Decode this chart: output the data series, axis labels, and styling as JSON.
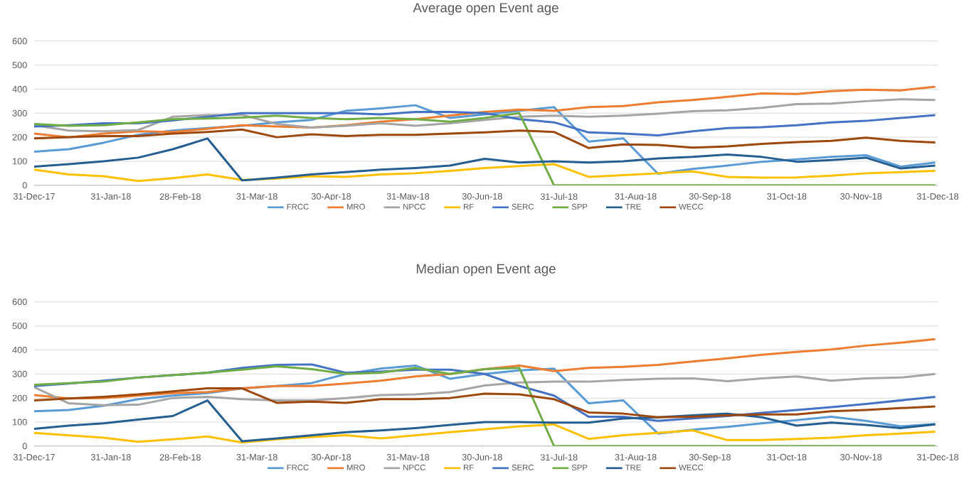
{
  "chart_data": [
    {
      "type": "line",
      "title": "Average open Event age",
      "x": [
        "2017-12-31",
        "2018-01-14",
        "2018-01-28",
        "2018-02-11",
        "2018-02-25",
        "2018-03-11",
        "2018-03-25",
        "2018-04-08",
        "2018-04-22",
        "2018-05-06",
        "2018-05-20",
        "2018-06-03",
        "2018-06-17",
        "2018-07-01",
        "2018-07-15",
        "2018-07-29",
        "2018-08-12",
        "2018-08-26",
        "2018-09-09",
        "2018-09-23",
        "2018-10-07",
        "2018-10-21",
        "2018-11-04",
        "2018-11-18",
        "2018-12-02",
        "2018-12-16",
        "2018-12-30"
      ],
      "series": [
        {
          "name": "FRCC",
          "color": "#5b9bd5",
          "values": [
            140,
            150,
            177,
            210,
            228,
            238,
            248,
            262,
            272,
            310,
            320,
            333,
            280,
            295,
            310,
            325,
            182,
            195,
            48,
            68,
            82,
            98,
            108,
            118,
            125,
            78,
            95
          ]
        },
        {
          "name": "MRO",
          "color": "#ed7d31",
          "values": [
            215,
            200,
            215,
            225,
            222,
            235,
            250,
            245,
            240,
            250,
            265,
            275,
            290,
            305,
            315,
            310,
            325,
            330,
            345,
            355,
            368,
            382,
            380,
            392,
            398,
            395,
            410
          ]
        },
        {
          "name": "NPCC",
          "color": "#a5a5a5",
          "values": [
            250,
            228,
            225,
            230,
            285,
            292,
            293,
            255,
            240,
            248,
            258,
            248,
            258,
            272,
            285,
            290,
            285,
            290,
            298,
            308,
            312,
            322,
            338,
            340,
            350,
            358,
            355
          ]
        },
        {
          "name": "RF",
          "color": "#ffc000",
          "values": [
            65,
            45,
            38,
            18,
            30,
            45,
            22,
            28,
            38,
            35,
            45,
            50,
            60,
            72,
            80,
            88,
            35,
            42,
            50,
            58,
            35,
            32,
            33,
            40,
            50,
            55,
            60
          ]
        },
        {
          "name": "SERC",
          "color": "#4472c4",
          "values": [
            245,
            250,
            258,
            258,
            270,
            285,
            300,
            300,
            300,
            300,
            295,
            305,
            305,
            300,
            275,
            262,
            220,
            215,
            208,
            225,
            238,
            242,
            250,
            262,
            268,
            280,
            292
          ]
        },
        {
          "name": "SPP",
          "color": "#70ad47",
          "values": [
            255,
            248,
            250,
            262,
            275,
            278,
            282,
            290,
            280,
            275,
            280,
            275,
            265,
            280,
            300,
            0,
            0,
            0,
            0,
            0,
            0,
            0,
            0,
            0,
            0,
            0,
            0
          ]
        },
        {
          "name": "TRE",
          "color": "#255e91",
          "values": [
            78,
            88,
            100,
            115,
            150,
            195,
            20,
            32,
            45,
            55,
            65,
            72,
            82,
            110,
            95,
            100,
            95,
            100,
            112,
            118,
            128,
            118,
            98,
            105,
            115,
            70,
            82
          ]
        },
        {
          "name": "WECC",
          "color": "#9e480e",
          "values": [
            195,
            200,
            205,
            205,
            215,
            222,
            232,
            200,
            212,
            205,
            210,
            210,
            215,
            220,
            228,
            222,
            155,
            170,
            168,
            157,
            162,
            172,
            180,
            185,
            198,
            185,
            178
          ]
        }
      ],
      "xlim": [
        "2017-12-31",
        "2018-12-31"
      ],
      "xticks": [
        {
          "value": "2017-12-31",
          "label": "31-Dec-17"
        },
        {
          "value": "2018-01-31",
          "label": "31-Jan-18"
        },
        {
          "value": "2018-02-28",
          "label": "28-Feb-18"
        },
        {
          "value": "2018-03-31",
          "label": "31-Mar-18"
        },
        {
          "value": "2018-04-30",
          "label": "30-Apr-18"
        },
        {
          "value": "2018-05-31",
          "label": "31-May-18"
        },
        {
          "value": "2018-06-30",
          "label": "30-Jun-18"
        },
        {
          "value": "2018-07-31",
          "label": "31-Jul-18"
        },
        {
          "value": "2018-08-31",
          "label": "31-Aug-18"
        },
        {
          "value": "2018-09-30",
          "label": "30-Sep-18"
        },
        {
          "value": "2018-10-31",
          "label": "31-Oct-18"
        },
        {
          "value": "2018-11-30",
          "label": "30-Nov-18"
        },
        {
          "value": "2018-12-31",
          "label": "31-Dec-18"
        }
      ],
      "ylim": [
        0,
        600
      ],
      "yticks": [
        0,
        100,
        200,
        300,
        400,
        500,
        600
      ],
      "grid": "y",
      "legend": "bottom"
    },
    {
      "type": "line",
      "title": "Median open Event age",
      "x": [
        "2017-12-31",
        "2018-01-14",
        "2018-01-28",
        "2018-02-11",
        "2018-02-25",
        "2018-03-11",
        "2018-03-25",
        "2018-04-08",
        "2018-04-22",
        "2018-05-06",
        "2018-05-20",
        "2018-06-03",
        "2018-06-17",
        "2018-07-01",
        "2018-07-15",
        "2018-07-29",
        "2018-08-12",
        "2018-08-26",
        "2018-09-09",
        "2018-09-23",
        "2018-10-07",
        "2018-10-21",
        "2018-11-04",
        "2018-11-18",
        "2018-12-02",
        "2018-12-16",
        "2018-12-30"
      ],
      "series": [
        {
          "name": "FRCC",
          "color": "#5b9bd5",
          "values": [
            145,
            150,
            168,
            195,
            210,
            220,
            240,
            250,
            262,
            300,
            322,
            335,
            280,
            300,
            315,
            322,
            178,
            190,
            52,
            68,
            80,
            95,
            108,
            122,
            105,
            82,
            92
          ]
        },
        {
          "name": "MRO",
          "color": "#ed7d31",
          "values": [
            212,
            198,
            200,
            210,
            220,
            225,
            240,
            250,
            250,
            260,
            272,
            290,
            300,
            320,
            335,
            312,
            325,
            330,
            338,
            352,
            365,
            380,
            392,
            402,
            418,
            430,
            445
          ]
        },
        {
          "name": "NPCC",
          "color": "#a5a5a5",
          "values": [
            245,
            178,
            170,
            172,
            200,
            205,
            195,
            190,
            190,
            200,
            212,
            215,
            225,
            252,
            265,
            268,
            268,
            275,
            280,
            282,
            270,
            282,
            290,
            272,
            282,
            285,
            300
          ]
        },
        {
          "name": "RF",
          "color": "#ffc000",
          "values": [
            55,
            45,
            35,
            18,
            28,
            40,
            15,
            28,
            38,
            45,
            32,
            45,
            58,
            70,
            82,
            90,
            30,
            45,
            55,
            65,
            25,
            25,
            30,
            35,
            45,
            52,
            60
          ]
        },
        {
          "name": "SERC",
          "color": "#4472c4",
          "values": [
            250,
            260,
            272,
            285,
            295,
            305,
            325,
            338,
            340,
            305,
            310,
            318,
            318,
            300,
            250,
            210,
            122,
            122,
            105,
            115,
            125,
            138,
            150,
            162,
            175,
            190,
            205
          ]
        },
        {
          "name": "SPP",
          "color": "#70ad47",
          "values": [
            255,
            262,
            268,
            285,
            295,
            305,
            318,
            332,
            320,
            300,
            305,
            325,
            300,
            320,
            325,
            0,
            0,
            0,
            0,
            0,
            0,
            0,
            0,
            0,
            0,
            0,
            0
          ]
        },
        {
          "name": "TRE",
          "color": "#255e91",
          "values": [
            72,
            85,
            95,
            110,
            125,
            190,
            20,
            32,
            45,
            58,
            65,
            75,
            88,
            100,
            100,
            98,
            98,
            115,
            120,
            128,
            135,
            120,
            85,
            98,
            88,
            75,
            90
          ]
        },
        {
          "name": "WECC",
          "color": "#9e480e",
          "values": [
            190,
            198,
            205,
            215,
            228,
            240,
            240,
            180,
            185,
            180,
            195,
            195,
            200,
            218,
            215,
            195,
            140,
            135,
            120,
            122,
            128,
            132,
            132,
            145,
            150,
            158,
            165
          ]
        }
      ],
      "xlim": [
        "2017-12-31",
        "2018-12-31"
      ],
      "xticks": [
        {
          "value": "2017-12-31",
          "label": "31-Dec-17"
        },
        {
          "value": "2018-01-31",
          "label": "31-Jan-18"
        },
        {
          "value": "2018-02-28",
          "label": "28-Feb-18"
        },
        {
          "value": "2018-03-31",
          "label": "31-Mar-18"
        },
        {
          "value": "2018-04-30",
          "label": "30-Apr-18"
        },
        {
          "value": "2018-05-31",
          "label": "31-May-18"
        },
        {
          "value": "2018-06-30",
          "label": "30-Jun-18"
        },
        {
          "value": "2018-07-31",
          "label": "31-Jul-18"
        },
        {
          "value": "2018-08-31",
          "label": "31-Aug-18"
        },
        {
          "value": "2018-09-30",
          "label": "30-Sep-18"
        },
        {
          "value": "2018-10-31",
          "label": "31-Oct-18"
        },
        {
          "value": "2018-11-30",
          "label": "30-Nov-18"
        },
        {
          "value": "2018-12-31",
          "label": "31-Dec-18"
        }
      ],
      "ylim": [
        0,
        600
      ],
      "yticks": [
        0,
        100,
        200,
        300,
        400,
        500,
        600
      ],
      "grid": "y",
      "legend": "bottom"
    }
  ]
}
